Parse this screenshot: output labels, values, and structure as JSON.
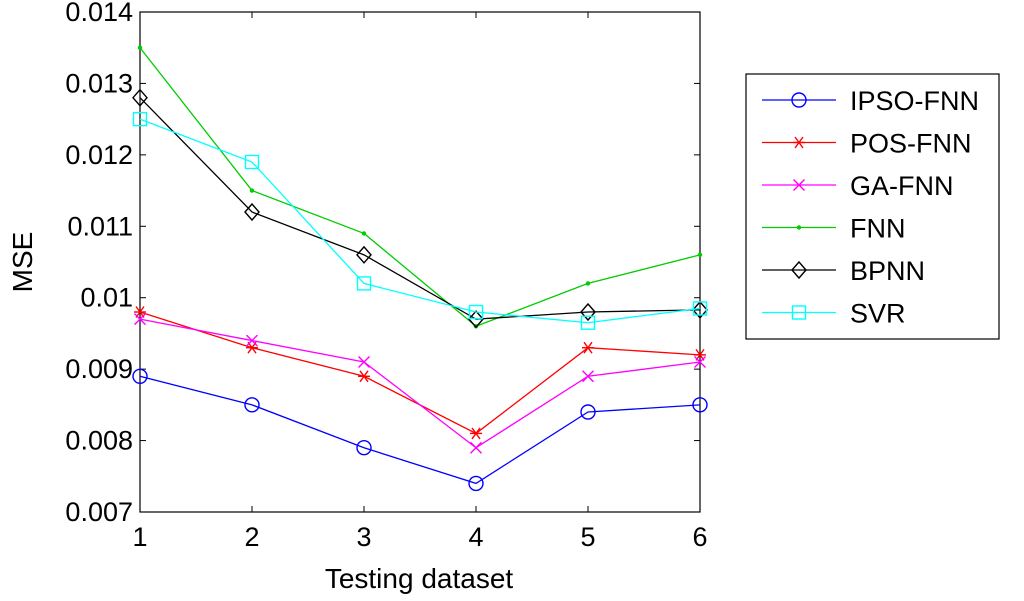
{
  "chart_data": {
    "type": "line",
    "title": "",
    "xlabel": "Testing dataset",
    "ylabel": "MSE",
    "x": [
      1,
      2,
      3,
      4,
      5,
      6
    ],
    "xlim": [
      1,
      6
    ],
    "ylim": [
      0.007,
      0.014
    ],
    "xticks": [
      "1",
      "2",
      "3",
      "4",
      "5",
      "6"
    ],
    "yticks": [
      {
        "value": 0.007,
        "label": "0.007"
      },
      {
        "value": 0.008,
        "label": "0.008"
      },
      {
        "value": 0.009,
        "label": "0.009"
      },
      {
        "value": 0.01,
        "label": "0.01"
      },
      {
        "value": 0.011,
        "label": "0.011"
      },
      {
        "value": 0.012,
        "label": "0.012"
      },
      {
        "value": 0.013,
        "label": "0.013"
      },
      {
        "value": 0.014,
        "label": "0.014"
      }
    ],
    "grid": false,
    "legend_position": "outside-right",
    "series": [
      {
        "name": "IPSO-FNN",
        "color": "#0000ff",
        "marker": "circle",
        "values": [
          0.0089,
          0.0085,
          0.0079,
          0.0074,
          0.0084,
          0.0085
        ]
      },
      {
        "name": "POS-FNN",
        "color": "#ff0000",
        "marker": "asterisk",
        "values": [
          0.0098,
          0.0093,
          0.0089,
          0.0081,
          0.0093,
          0.0092
        ]
      },
      {
        "name": "GA-FNN",
        "color": "#ff00ff",
        "marker": "x",
        "values": [
          0.0097,
          0.0094,
          0.0091,
          0.0079,
          0.0089,
          0.0091
        ]
      },
      {
        "name": "FNN",
        "color": "#00cc00",
        "marker": "dot",
        "values": [
          0.0135,
          0.0115,
          0.0109,
          0.0096,
          0.0102,
          0.0106
        ]
      },
      {
        "name": "BPNN",
        "color": "#000000",
        "marker": "diamond",
        "values": [
          0.0128,
          0.0112,
          0.0106,
          0.0097,
          0.0098,
          0.00983
        ]
      },
      {
        "name": "SVR",
        "color": "#00ffff",
        "marker": "square",
        "values": [
          0.0125,
          0.0119,
          0.0102,
          0.0098,
          0.00965,
          0.00985
        ]
      }
    ]
  }
}
